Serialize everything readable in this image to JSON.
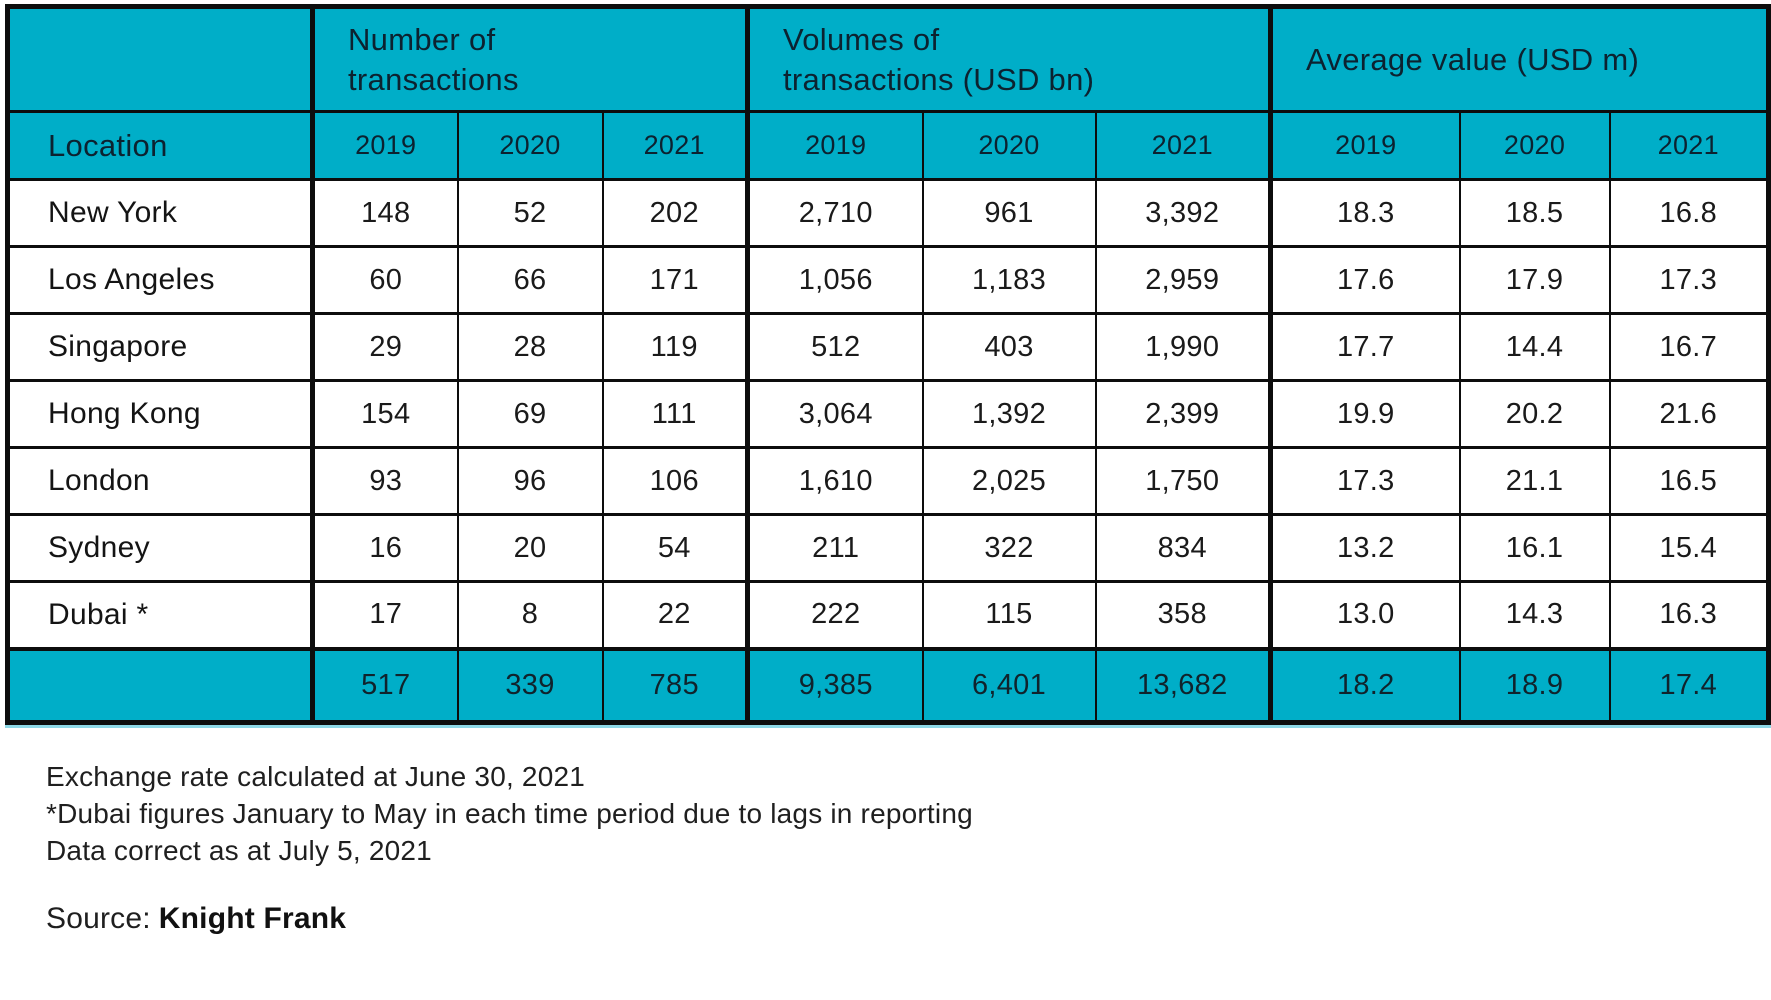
{
  "colors": {
    "teal": "#00AEC8",
    "border": "#0d0d0d",
    "header_text": "#0c2230",
    "body_text": "#1a1a1a"
  },
  "table": {
    "location_header": "Location",
    "groups": [
      {
        "label": "Number of\ntransactions"
      },
      {
        "label": "Volumes of\ntransactions (USD bn)"
      },
      {
        "label": "Average value (USD m)"
      }
    ],
    "years": [
      "2019",
      "2020",
      "2021"
    ],
    "rows": [
      {
        "location": "New York",
        "values": [
          "148",
          "52",
          "202",
          "2,710",
          "961",
          "3,392",
          "18.3",
          "18.5",
          "16.8"
        ]
      },
      {
        "location": "Los Angeles",
        "values": [
          "60",
          "66",
          "171",
          "1,056",
          "1,183",
          "2,959",
          "17.6",
          "17.9",
          "17.3"
        ]
      },
      {
        "location": "Singapore",
        "values": [
          "29",
          "28",
          "119",
          "512",
          "403",
          "1,990",
          "17.7",
          "14.4",
          "16.7"
        ]
      },
      {
        "location": "Hong Kong",
        "values": [
          "154",
          "69",
          "111",
          "3,064",
          "1,392",
          "2,399",
          "19.9",
          "20.2",
          "21.6"
        ]
      },
      {
        "location": "London",
        "values": [
          "93",
          "96",
          "106",
          "1,610",
          "2,025",
          "1,750",
          "17.3",
          "21.1",
          "16.5"
        ]
      },
      {
        "location": "Sydney",
        "values": [
          "16",
          "20",
          "54",
          "211",
          "322",
          "834",
          "13.2",
          "16.1",
          "15.4"
        ]
      },
      {
        "location": "Dubai *",
        "values": [
          "17",
          "8",
          "22",
          "222",
          "115",
          "358",
          "13.0",
          "14.3",
          "16.3"
        ]
      }
    ],
    "totals": {
      "location": "",
      "values": [
        "517",
        "339",
        "785",
        "9,385",
        "6,401",
        "13,682",
        "18.2",
        "18.9",
        "17.4"
      ]
    }
  },
  "notes": [
    "Exchange rate calculated at June 30, 2021",
    "*Dubai figures January to May in each time period due to lags in reporting",
    "Data correct as at July 5, 2021"
  ],
  "source": {
    "label": "Source:",
    "name": "Knight Frank"
  },
  "chart_data": {
    "type": "table",
    "title": "",
    "column_groups": [
      "Number of transactions",
      "Volumes of transactions (USD bn)",
      "Average value (USD m)"
    ],
    "years": [
      2019,
      2020,
      2021
    ],
    "rows": [
      {
        "location": "New York",
        "number_of_transactions": [
          148,
          52,
          202
        ],
        "volumes_usd_bn": [
          2710,
          961,
          3392
        ],
        "average_value_usd_m": [
          18.3,
          18.5,
          16.8
        ]
      },
      {
        "location": "Los Angeles",
        "number_of_transactions": [
          60,
          66,
          171
        ],
        "volumes_usd_bn": [
          1056,
          1183,
          2959
        ],
        "average_value_usd_m": [
          17.6,
          17.9,
          17.3
        ]
      },
      {
        "location": "Singapore",
        "number_of_transactions": [
          29,
          28,
          119
        ],
        "volumes_usd_bn": [
          512,
          403,
          1990
        ],
        "average_value_usd_m": [
          17.7,
          14.4,
          16.7
        ]
      },
      {
        "location": "Hong Kong",
        "number_of_transactions": [
          154,
          69,
          111
        ],
        "volumes_usd_bn": [
          3064,
          1392,
          2399
        ],
        "average_value_usd_m": [
          19.9,
          20.2,
          21.6
        ]
      },
      {
        "location": "London",
        "number_of_transactions": [
          93,
          96,
          106
        ],
        "volumes_usd_bn": [
          1610,
          2025,
          1750
        ],
        "average_value_usd_m": [
          17.3,
          21.1,
          16.5
        ]
      },
      {
        "location": "Sydney",
        "number_of_transactions": [
          16,
          20,
          54
        ],
        "volumes_usd_bn": [
          211,
          322,
          834
        ],
        "average_value_usd_m": [
          13.2,
          16.1,
          15.4
        ]
      },
      {
        "location": "Dubai *",
        "number_of_transactions": [
          17,
          8,
          22
        ],
        "volumes_usd_bn": [
          222,
          115,
          358
        ],
        "average_value_usd_m": [
          13.0,
          14.3,
          16.3
        ]
      }
    ],
    "totals": {
      "number_of_transactions": [
        517,
        339,
        785
      ],
      "volumes_usd_bn": [
        9385,
        6401,
        13682
      ],
      "average_value_usd_m": [
        18.2,
        18.9,
        17.4
      ]
    },
    "notes": [
      "Exchange rate calculated at June 30, 2021",
      "*Dubai figures January to May in each time period due to lags in reporting",
      "Data correct as at July 5, 2021"
    ],
    "source": "Knight Frank"
  }
}
